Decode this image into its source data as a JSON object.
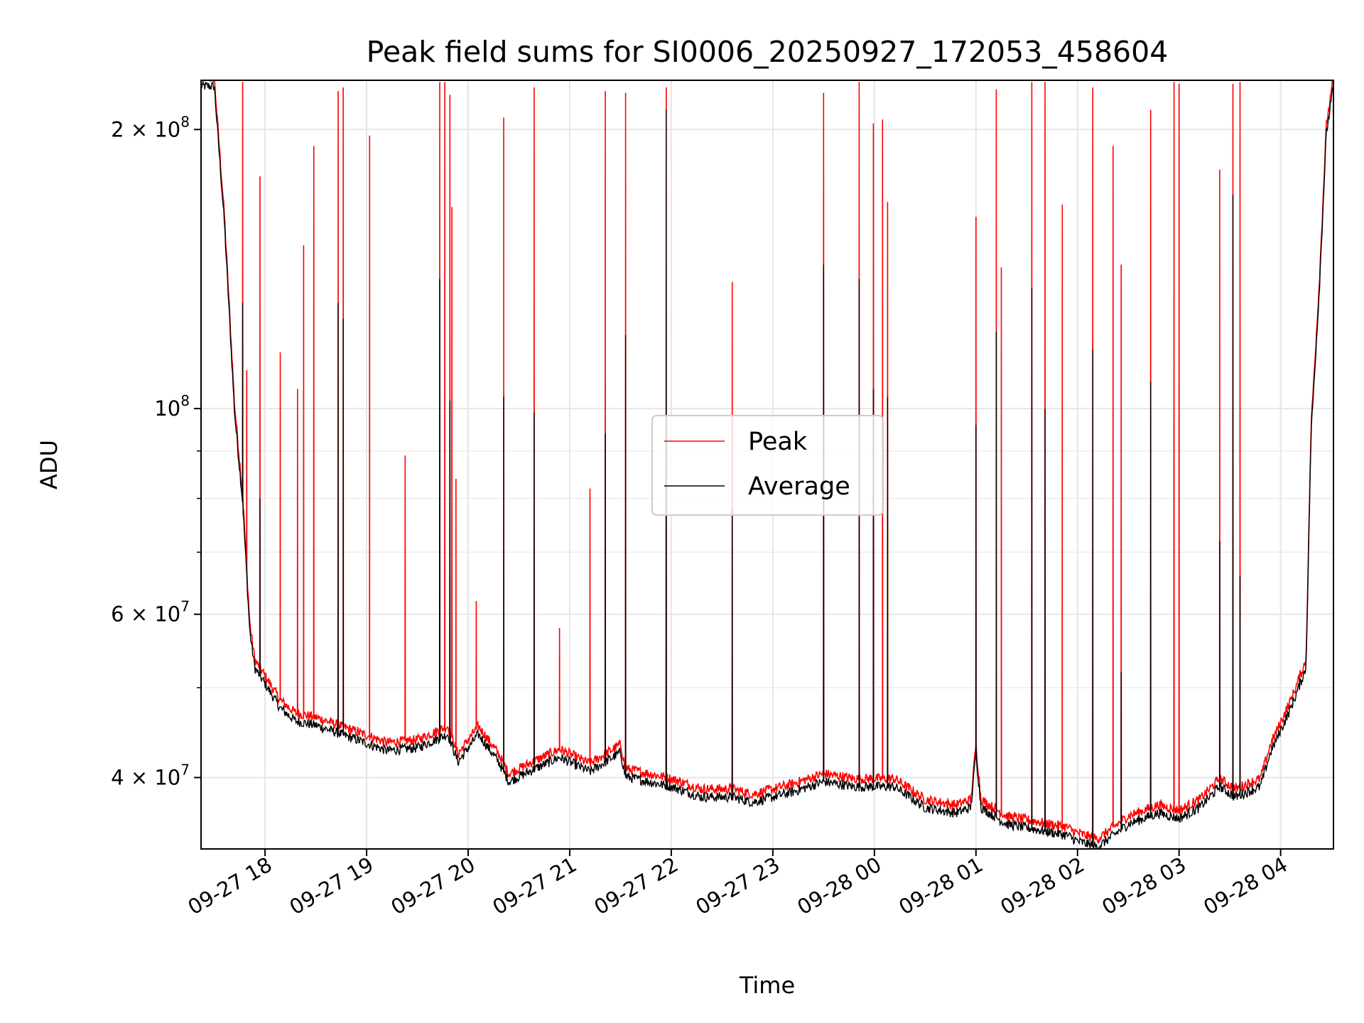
{
  "chart_data": {
    "type": "line",
    "title": "Peak field sums for SI0006_20250927_172053_458604",
    "xlabel": "Time",
    "ylabel": "ADU",
    "yscale": "log",
    "ylim": [
      33500000,
      226000000
    ],
    "xlim_hours": [
      -0.63,
      10.52
    ],
    "x_unit": "hours since 09-27 18:00",
    "grid": true,
    "legend_position": "center",
    "x_ticks": [
      {
        "value": 0,
        "label": "09-27 18"
      },
      {
        "value": 1,
        "label": "09-27 19"
      },
      {
        "value": 2,
        "label": "09-27 20"
      },
      {
        "value": 3,
        "label": "09-27 21"
      },
      {
        "value": 4,
        "label": "09-27 22"
      },
      {
        "value": 5,
        "label": "09-27 23"
      },
      {
        "value": 6,
        "label": "09-28 00"
      },
      {
        "value": 7,
        "label": "09-28 01"
      },
      {
        "value": 8,
        "label": "09-28 02"
      },
      {
        "value": 9,
        "label": "09-28 03"
      },
      {
        "value": 10,
        "label": "09-28 04"
      }
    ],
    "y_major_ticks": [
      {
        "value": 40000000,
        "base": "4 × 10",
        "exp": "7"
      },
      {
        "value": 60000000,
        "base": "6 × 10",
        "exp": "7"
      },
      {
        "value": 100000000,
        "base": "10",
        "exp": "8"
      },
      {
        "value": 200000000,
        "base": "2 × 10",
        "exp": "8"
      }
    ],
    "y_minor_ticks": [
      50000000,
      70000000,
      80000000,
      90000000
    ],
    "series": [
      {
        "name": "Peak",
        "color": "#ff0000",
        "baseline_points": [
          [
            -0.63,
            225000000
          ],
          [
            -0.5,
            225000000
          ],
          [
            -0.4,
            160000000
          ],
          [
            -0.3,
            100000000
          ],
          [
            -0.22,
            80000000
          ],
          [
            -0.15,
            58000000
          ],
          [
            -0.1,
            53000000
          ],
          [
            0,
            51000000
          ],
          [
            0.15,
            48000000
          ],
          [
            0.3,
            46500000
          ],
          [
            0.5,
            46000000
          ],
          [
            0.8,
            44800000
          ],
          [
            1.0,
            44000000
          ],
          [
            1.2,
            43200000
          ],
          [
            1.5,
            43500000
          ],
          [
            1.8,
            45000000
          ],
          [
            1.9,
            42000000
          ],
          [
            2.1,
            45000000
          ],
          [
            2.3,
            42000000
          ],
          [
            2.4,
            40000000
          ],
          [
            2.7,
            41500000
          ],
          [
            2.9,
            42500000
          ],
          [
            3.2,
            41000000
          ],
          [
            3.5,
            43000000
          ],
          [
            3.55,
            40500000
          ],
          [
            4.0,
            39500000
          ],
          [
            4.3,
            38500000
          ],
          [
            4.6,
            38500000
          ],
          [
            4.8,
            38000000
          ],
          [
            5.2,
            39000000
          ],
          [
            5.5,
            40000000
          ],
          [
            5.8,
            39500000
          ],
          [
            6.2,
            39500000
          ],
          [
            6.5,
            37500000
          ],
          [
            6.8,
            37000000
          ],
          [
            6.95,
            37500000
          ],
          [
            7.0,
            43000000
          ],
          [
            7.05,
            37500000
          ],
          [
            7.3,
            36000000
          ],
          [
            7.6,
            35500000
          ],
          [
            7.9,
            35000000
          ],
          [
            8.0,
            34500000
          ],
          [
            8.2,
            34000000
          ],
          [
            8.5,
            36000000
          ],
          [
            8.8,
            37000000
          ],
          [
            9.0,
            36500000
          ],
          [
            9.2,
            37500000
          ],
          [
            9.4,
            39500000
          ],
          [
            9.55,
            38500000
          ],
          [
            9.8,
            39500000
          ],
          [
            9.9,
            43000000
          ],
          [
            10.1,
            48000000
          ],
          [
            10.25,
            53000000
          ],
          [
            10.3,
            95000000
          ],
          [
            10.38,
            135000000
          ],
          [
            10.45,
            200000000
          ],
          [
            10.52,
            225000000
          ]
        ],
        "spikes": [
          [
            -0.22,
            225000000
          ],
          [
            -0.18,
            110000000
          ],
          [
            -0.05,
            178000000
          ],
          [
            0.15,
            115000000
          ],
          [
            0.32,
            105000000
          ],
          [
            0.38,
            150000000
          ],
          [
            0.48,
            192000000
          ],
          [
            0.72,
            220000000
          ],
          [
            0.77,
            222000000
          ],
          [
            1.03,
            197000000
          ],
          [
            1.38,
            89000000
          ],
          [
            1.72,
            225000000
          ],
          [
            1.77,
            225000000
          ],
          [
            1.82,
            218000000
          ],
          [
            1.84,
            165000000
          ],
          [
            1.88,
            84000000
          ],
          [
            2.08,
            62000000
          ],
          [
            2.35,
            206000000
          ],
          [
            2.65,
            222000000
          ],
          [
            2.9,
            58000000
          ],
          [
            3.2,
            82000000
          ],
          [
            3.35,
            220000000
          ],
          [
            3.55,
            219000000
          ],
          [
            3.95,
            222000000
          ],
          [
            4.6,
            137000000
          ],
          [
            5.5,
            219000000
          ],
          [
            5.85,
            225000000
          ],
          [
            5.99,
            203000000
          ],
          [
            6.08,
            205000000
          ],
          [
            6.13,
            167000000
          ],
          [
            7.0,
            161000000
          ],
          [
            7.2,
            221000000
          ],
          [
            7.25,
            142000000
          ],
          [
            7.55,
            225000000
          ],
          [
            7.68,
            225000000
          ],
          [
            7.85,
            166000000
          ],
          [
            8.15,
            222000000
          ],
          [
            8.35,
            192000000
          ],
          [
            8.43,
            143000000
          ],
          [
            8.72,
            210000000
          ],
          [
            8.95,
            225000000
          ],
          [
            9.0,
            224000000
          ],
          [
            9.4,
            181000000
          ],
          [
            9.53,
            224000000
          ],
          [
            9.6,
            225000000
          ]
        ]
      },
      {
        "name": "Average",
        "color": "#000000",
        "spikes": [
          [
            -0.22,
            130000000
          ],
          [
            -0.05,
            80000000
          ],
          [
            0.72,
            130000000
          ],
          [
            0.77,
            125000000
          ],
          [
            1.72,
            138000000
          ],
          [
            1.82,
            102000000
          ],
          [
            2.35,
            103000000
          ],
          [
            2.65,
            99000000
          ],
          [
            3.35,
            94000000
          ],
          [
            3.55,
            120000000
          ],
          [
            3.95,
            210000000
          ],
          [
            4.6,
            78000000
          ],
          [
            5.5,
            143000000
          ],
          [
            5.85,
            138000000
          ],
          [
            5.99,
            105000000
          ],
          [
            6.13,
            103000000
          ],
          [
            7.0,
            96000000
          ],
          [
            7.2,
            121000000
          ],
          [
            7.55,
            135000000
          ],
          [
            7.68,
            100000000
          ],
          [
            8.15,
            116000000
          ],
          [
            8.43,
            52000000
          ],
          [
            8.72,
            107000000
          ],
          [
            9.4,
            72000000
          ],
          [
            9.53,
            170000000
          ],
          [
            9.6,
            66000000
          ]
        ]
      }
    ]
  }
}
